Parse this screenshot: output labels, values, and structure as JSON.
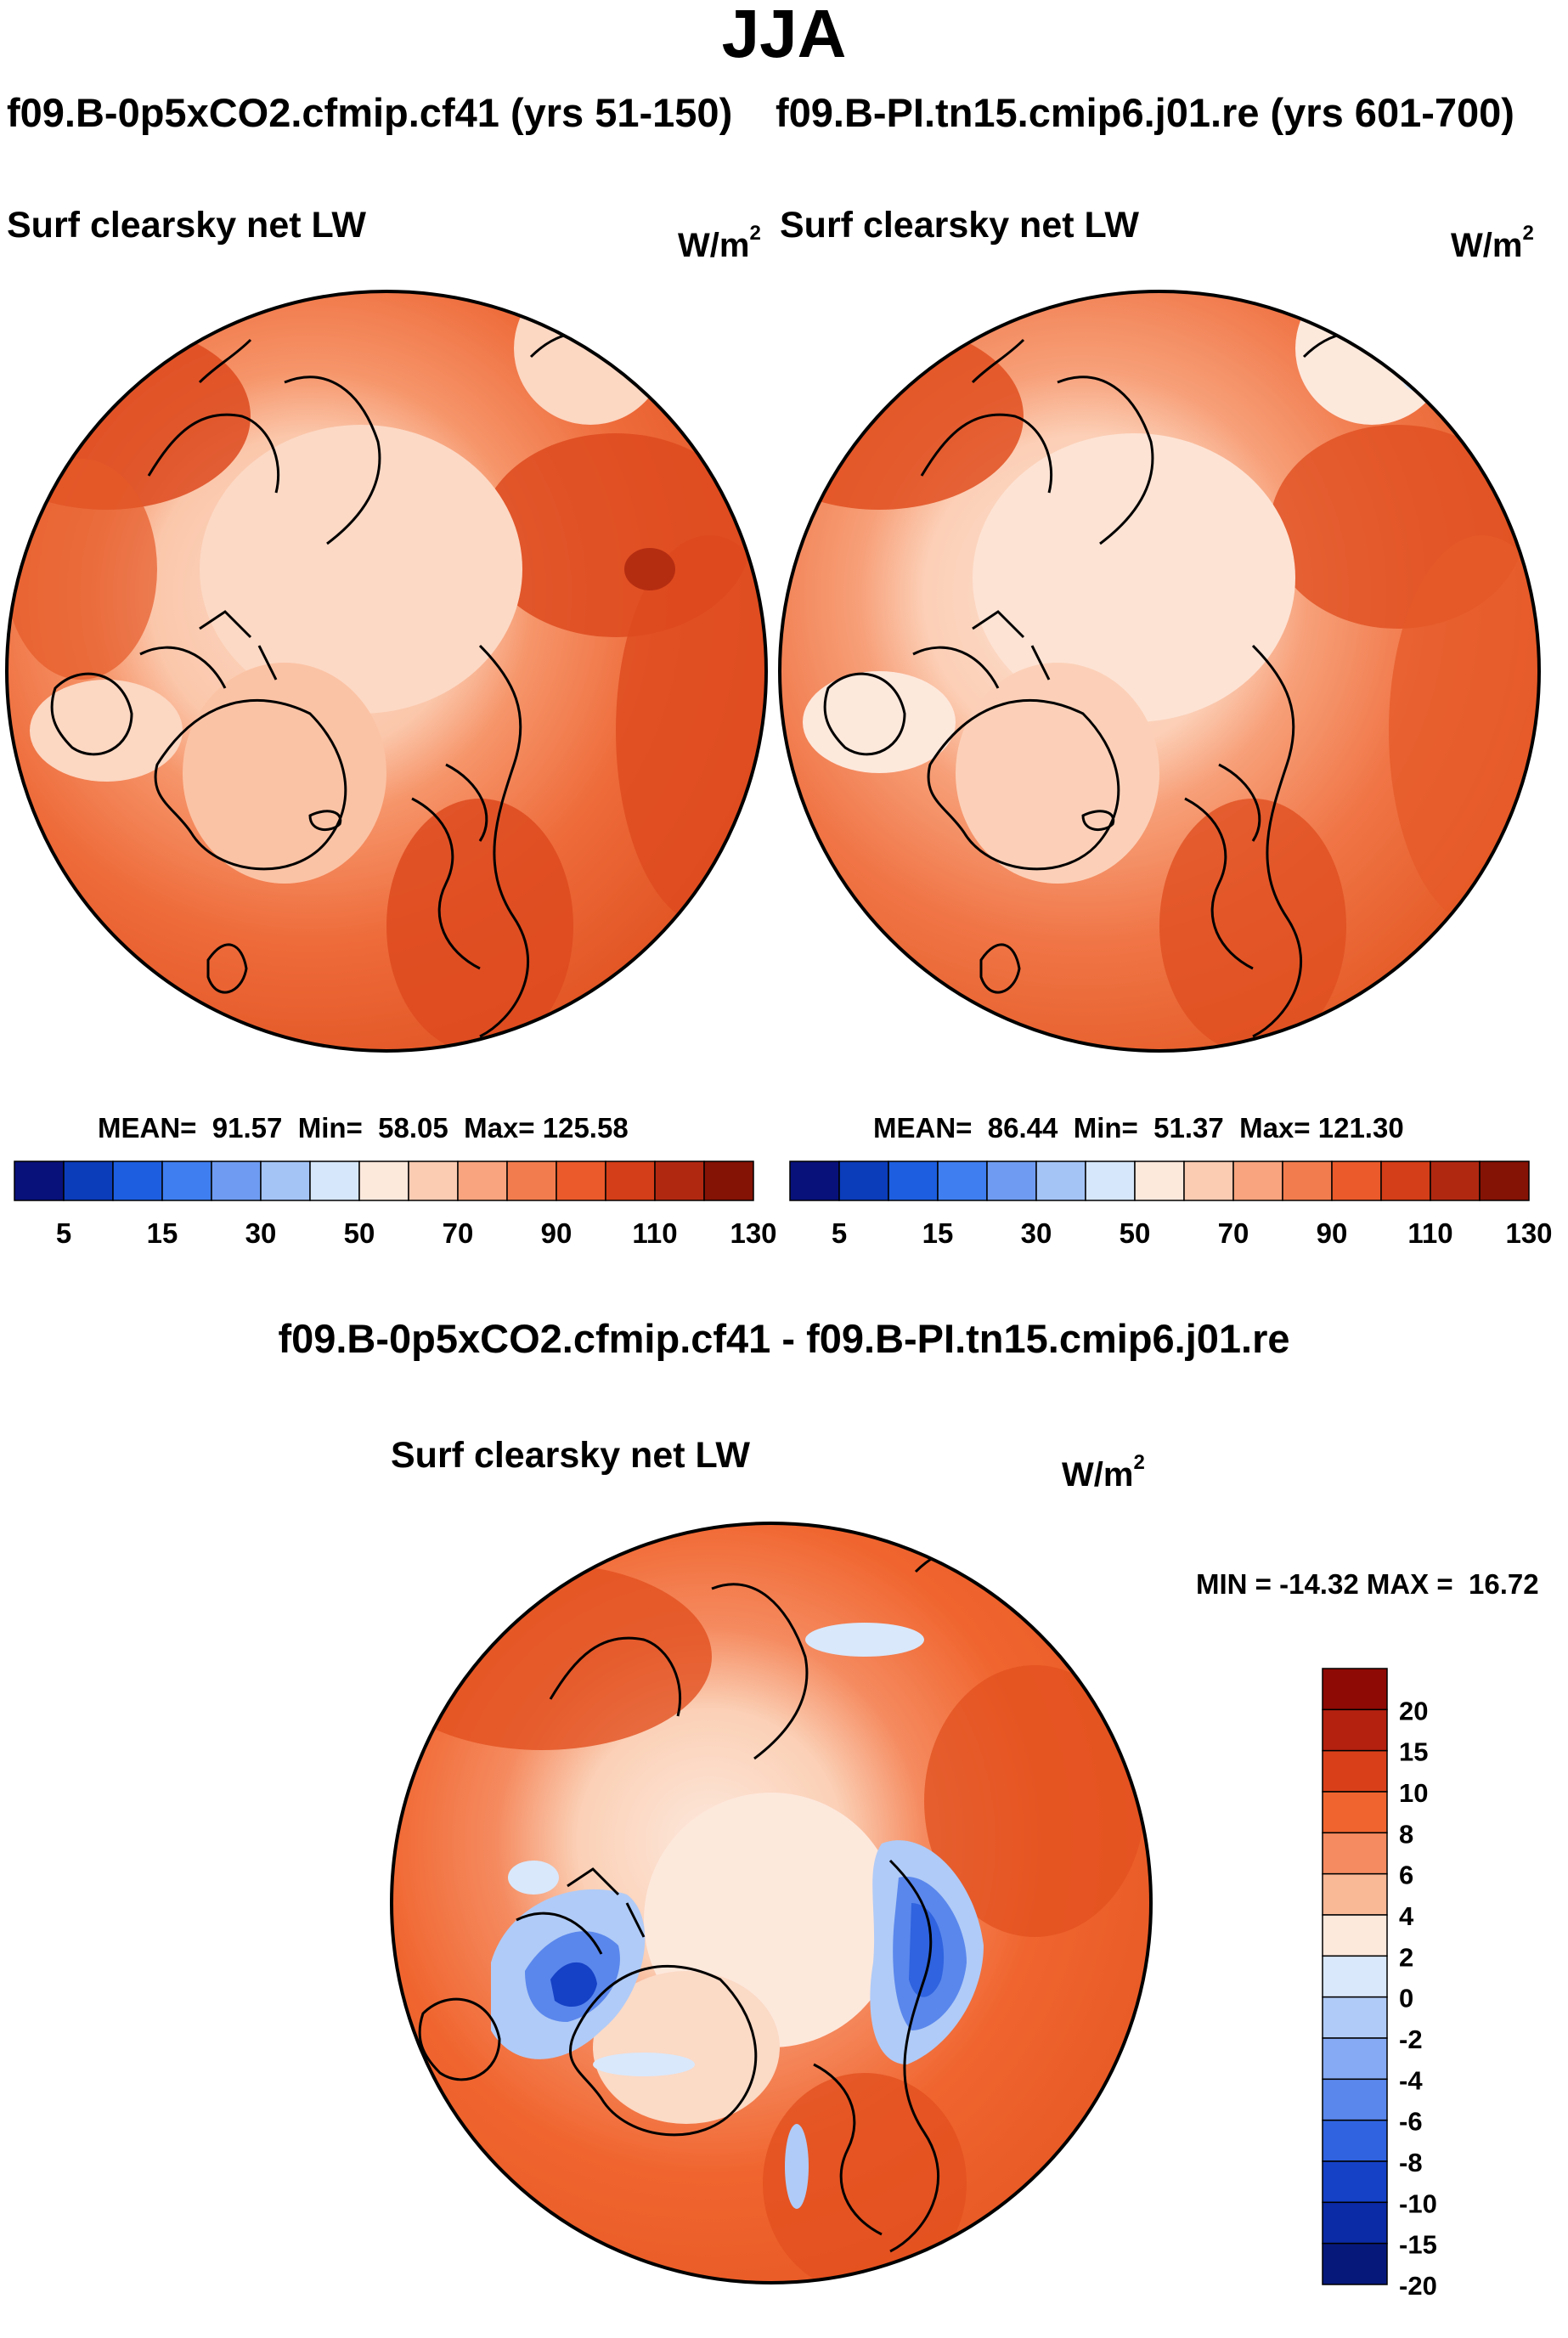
{
  "figure": {
    "season": "JJA",
    "case_a": "f09.B-0p5xCO2.cfmip.cf41 (yrs 51-150)",
    "case_b": "f09.B-PI.tn15.cmip6.j01.re (yrs 601-700)",
    "diff_title": "f09.B-0p5xCO2.cfmip.cf41 - f09.B-PI.tn15.cmip6.j01.re"
  },
  "panels": {
    "left": {
      "variable": "Surf clearsky net LW",
      "units_base": "W/m",
      "units_exp": "2",
      "mean_label": "MEAN=",
      "mean": "91.57",
      "min_label": "Min=",
      "min": "58.05",
      "max_label": "Max=",
      "max": "125.58"
    },
    "right": {
      "variable": "Surf clearsky net LW",
      "units_base": "W/m",
      "units_exp": "2",
      "mean_label": "MEAN=",
      "mean": "86.44",
      "min_label": "Min=",
      "min": "51.37",
      "max_label": "Max=",
      "max": "121.30"
    },
    "diff": {
      "variable": "Surf clearsky net LW",
      "units_base": "W/m",
      "units_exp": "2",
      "min_label": "MIN =",
      "min": "-14.32",
      "max_label": "MAX =",
      "max": "16.72"
    }
  },
  "colorbars": {
    "absolute": {
      "colors": [
        "#08117a",
        "#0b3cba",
        "#1d5ee0",
        "#3f7ef0",
        "#6f9cf2",
        "#a4c4f6",
        "#d6e7fb",
        "#fde8dc",
        "#fbcbb2",
        "#f9a47e",
        "#f37c4e",
        "#ea5a2a",
        "#d43e18",
        "#b12811",
        "#841205"
      ],
      "tick_labels": [
        "5",
        "15",
        "30",
        "50",
        "70",
        "90",
        "110",
        "130"
      ],
      "tick_after_box": [
        1,
        3,
        5,
        7,
        9,
        11,
        13,
        15
      ]
    },
    "difference": {
      "colors_top_to_bottom": [
        "#8e0a04",
        "#b4210f",
        "#d9401a",
        "#f0652f",
        "#f58b60",
        "#f9b896",
        "#fde8dc",
        "#d9e8fb",
        "#b0cbf7",
        "#86aaf3",
        "#5a87ec",
        "#2f63df",
        "#1541c6",
        "#0b2aa5",
        "#06187a"
      ],
      "tick_labels": [
        "20",
        "15",
        "10",
        "8",
        "6",
        "4",
        "2",
        "0",
        "-2",
        "-4",
        "-6",
        "-8",
        "-10",
        "-15",
        "-20"
      ]
    }
  },
  "map_colors": {
    "land_outline": "#000000",
    "circle_outline": "#000000",
    "ocean_pale": "#fcd3bc",
    "field_mid": "#f6956a",
    "field_warm": "#ee6b3a",
    "field_hot": "#dd4a1e",
    "field_hottest": "#b52d11",
    "diff_neg_light": "#cfe2fb",
    "diff_neg_mid": "#7ea5f2",
    "diff_neg_strong": "#2552d8"
  }
}
